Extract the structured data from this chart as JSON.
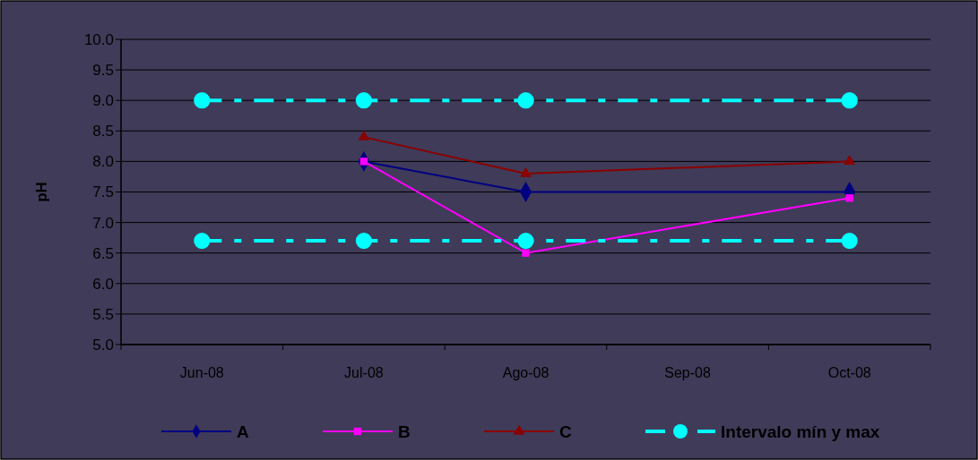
{
  "chart_data": {
    "type": "line",
    "ylabel": "pH",
    "categories": [
      "Jun-08",
      "Jul-08",
      "Ago-08",
      "Sep-08",
      "Oct-08"
    ],
    "ylim": [
      5,
      10
    ],
    "yticks": [
      {
        "value": 5,
        "label": "5.0"
      },
      {
        "value": 5.5,
        "label": "5.5"
      },
      {
        "value": 6,
        "label": "6.0"
      },
      {
        "value": 6.5,
        "label": "6.5"
      },
      {
        "value": 7,
        "label": "7.0"
      },
      {
        "value": 7.5,
        "label": "7.5"
      },
      {
        "value": 8,
        "label": "8.0"
      },
      {
        "value": 8.5,
        "label": "8.5"
      },
      {
        "value": 9,
        "label": "9.0"
      },
      {
        "value": 9.5,
        "label": "9.5"
      },
      {
        "value": 10,
        "label": "10.0"
      }
    ],
    "grid": "y",
    "legend": "bottom",
    "series": [
      {
        "name": "A",
        "color": "#000080",
        "marker": "diamond",
        "line_style": "solid",
        "values": [
          null,
          8.0,
          7.5,
          null,
          7.5
        ]
      },
      {
        "name": "B",
        "color": "#ff00ff",
        "marker": "square",
        "line_style": "solid",
        "values": [
          null,
          8.0,
          6.5,
          null,
          7.4
        ]
      },
      {
        "name": "C",
        "color": "#8b0000",
        "marker": "triangle",
        "line_style": "solid",
        "values": [
          null,
          8.4,
          7.8,
          null,
          8.0
        ]
      },
      {
        "name": "Intervalo mín y max",
        "color": "#00ffff",
        "marker": "circle",
        "line_style": "dashed",
        "values": [
          9.0,
          9.0,
          9.0,
          null,
          9.0
        ]
      },
      {
        "color": "#00ffff",
        "marker": "circle",
        "line_style": "dashed",
        "values": [
          6.7,
          6.7,
          6.7,
          null,
          6.7
        ]
      }
    ]
  }
}
